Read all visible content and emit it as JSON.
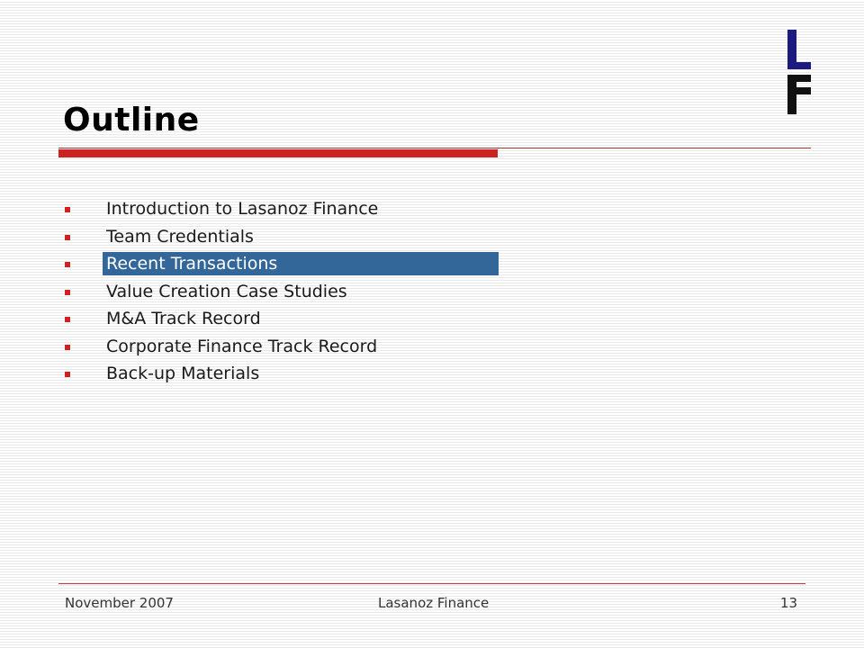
{
  "slide": {
    "title": "Outline",
    "accent_color": "#cc2222",
    "highlight_color": "#336699",
    "logo_icon": "lasanoz-finance-logo"
  },
  "outline": {
    "items": [
      {
        "label": "Introduction to Lasanoz Finance",
        "selected": false
      },
      {
        "label": "Team Credentials",
        "selected": false
      },
      {
        "label": "Recent Transactions",
        "selected": true
      },
      {
        "label": "Value Creation Case Studies",
        "selected": false
      },
      {
        "label": "M&A Track Record",
        "selected": false
      },
      {
        "label": "Corporate Finance Track Record",
        "selected": false
      },
      {
        "label": "Back-up Materials",
        "selected": false
      }
    ]
  },
  "footer": {
    "date": "November 2007",
    "company": "Lasanoz Finance",
    "page_number": "13"
  }
}
